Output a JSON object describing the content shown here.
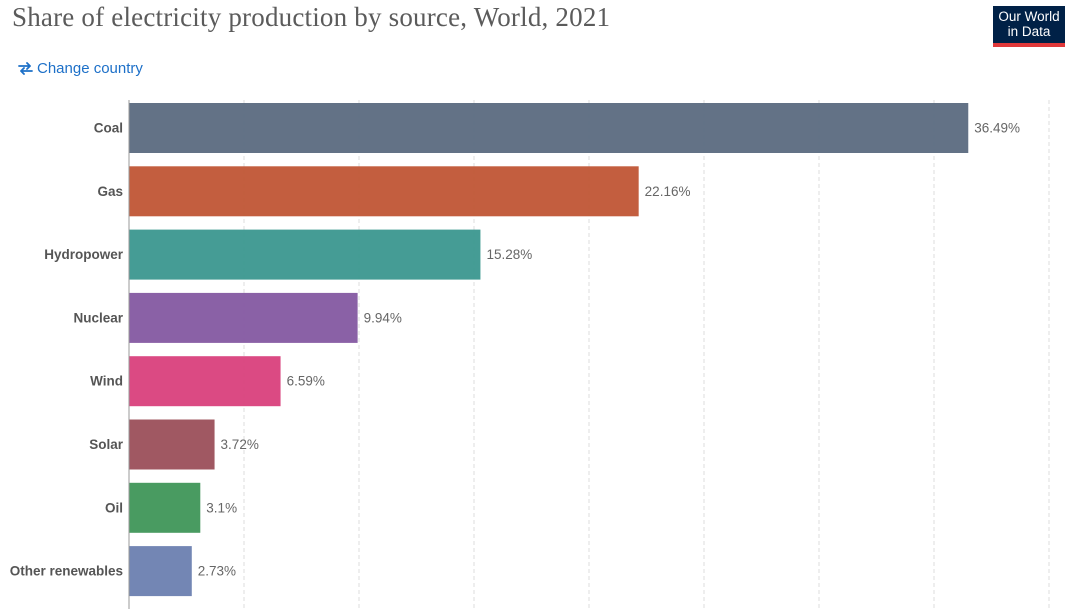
{
  "title": "Share of electricity production by source, World, 2021",
  "logo": {
    "line1": "Our World",
    "line2": "in Data"
  },
  "change_country": {
    "label": "Change country",
    "icon": "swap-arrows-icon"
  },
  "colors": {
    "title": "#5b5b5b",
    "link": "#1d70c8",
    "logo_bg": "#002147",
    "logo_accent": "#e0383a",
    "grid": "#dddddd",
    "category_label": "#555555",
    "value_label": "#666666"
  },
  "chart_data": {
    "type": "bar",
    "orientation": "horizontal",
    "title": "Share of electricity production by source, World, 2021",
    "categories": [
      "Coal",
      "Gas",
      "Hydropower",
      "Nuclear",
      "Wind",
      "Solar",
      "Oil",
      "Other renewables"
    ],
    "values": [
      36.49,
      22.16,
      15.28,
      9.94,
      6.59,
      3.72,
      3.1,
      2.73
    ],
    "value_labels": [
      "36.49%",
      "22.16%",
      "15.28%",
      "9.94%",
      "6.59%",
      "3.72%",
      "3.1%",
      "2.73%"
    ],
    "bar_colors": [
      "#5b6a80",
      "#c05535",
      "#3b978f",
      "#8459a1",
      "#d9407c",
      "#9b4f5a",
      "#3f9658",
      "#6b80b0"
    ],
    "unit": "%",
    "xlim": [
      0,
      40
    ],
    "grid_step": 5,
    "grid": true,
    "grid_style": "dashed-vertical"
  }
}
